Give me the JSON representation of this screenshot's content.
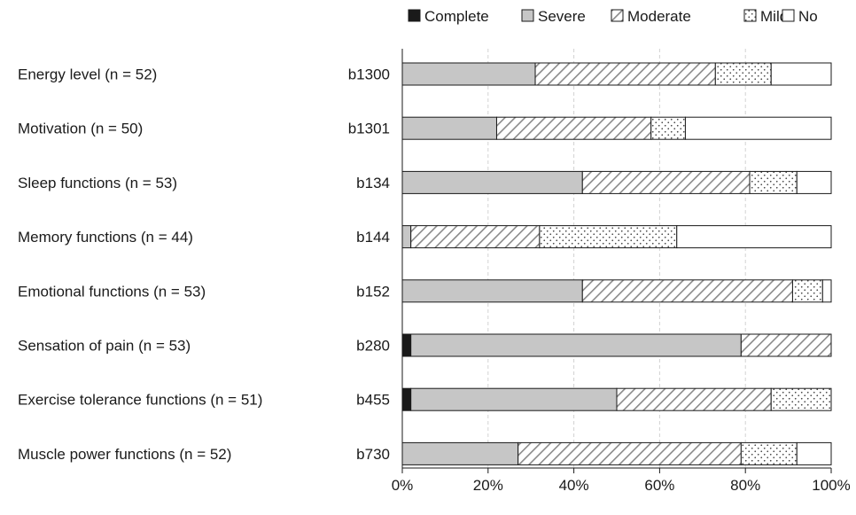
{
  "chart_data": {
    "type": "bar",
    "orientation": "horizontal",
    "stacked": true,
    "categories": [
      "Energy level (n = 52)",
      "Motivation (n = 50)",
      "Sleep functions (n = 53)",
      "Memory functions (n = 44)",
      "Emotional functions (n = 53)",
      "Sensation of pain (n = 53)",
      "Exercise tolerance functions (n = 51)",
      "Muscle power functions (n = 52)"
    ],
    "codes": [
      "b1300",
      "b1301",
      "b134",
      "b144",
      "b152",
      "b280",
      "b455",
      "b730"
    ],
    "series": [
      {
        "name": "Complete",
        "values": [
          0,
          0,
          0,
          0,
          0,
          2,
          2,
          0
        ]
      },
      {
        "name": "Severe",
        "values": [
          31,
          22,
          42,
          2,
          42,
          77,
          48,
          27
        ]
      },
      {
        "name": "Moderate",
        "values": [
          42,
          36,
          39,
          30,
          49,
          21,
          36,
          52
        ]
      },
      {
        "name": "Mild",
        "values": [
          13,
          8,
          11,
          32,
          7,
          0,
          14,
          13
        ]
      },
      {
        "name": "No",
        "values": [
          14,
          34,
          8,
          36,
          2,
          0,
          0,
          8
        ]
      }
    ],
    "x_ticks": [
      "0%",
      "20%",
      "40%",
      "60%",
      "80%",
      "100%"
    ],
    "xlim": [
      0,
      100
    ],
    "grid": true,
    "legend_position": "top-right"
  }
}
